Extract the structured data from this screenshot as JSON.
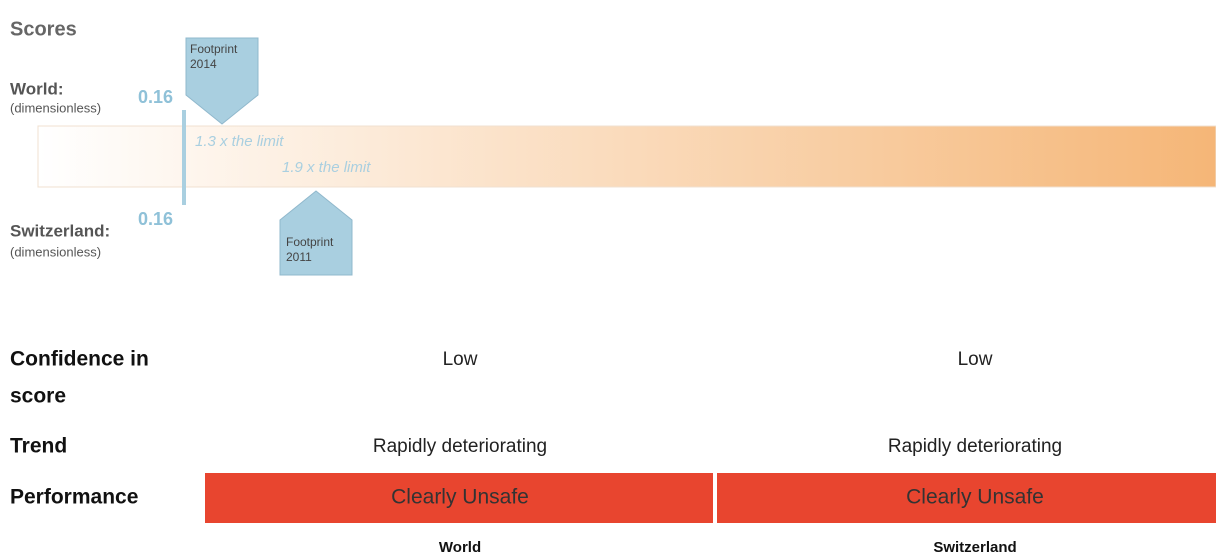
{
  "title": "Scores",
  "world": {
    "label": "World:",
    "unit": "(dimensionless)",
    "score": 0.16,
    "callout": [
      "Footprint",
      "2014"
    ],
    "ratio": "1.3 x the limit"
  },
  "switzerland": {
    "label": "Switzerland:",
    "unit": "(dimensionless)",
    "score": 0.16,
    "callout": [
      "Footprint",
      "2011"
    ],
    "ratio": "1.9 x the limit"
  },
  "table": {
    "rows": [
      {
        "label": [
          "Confidence in",
          "score"
        ],
        "values": [
          "Low",
          "Low"
        ]
      },
      {
        "label": [
          "Trend"
        ],
        "values": [
          "Rapidly deteriorating",
          "Rapidly deteriorating"
        ]
      },
      {
        "label": [
          "Performance"
        ],
        "values": [
          "Clearly Unsafe",
          "Clearly Unsafe"
        ]
      }
    ],
    "columns": [
      "World",
      "Switzerland"
    ]
  }
}
